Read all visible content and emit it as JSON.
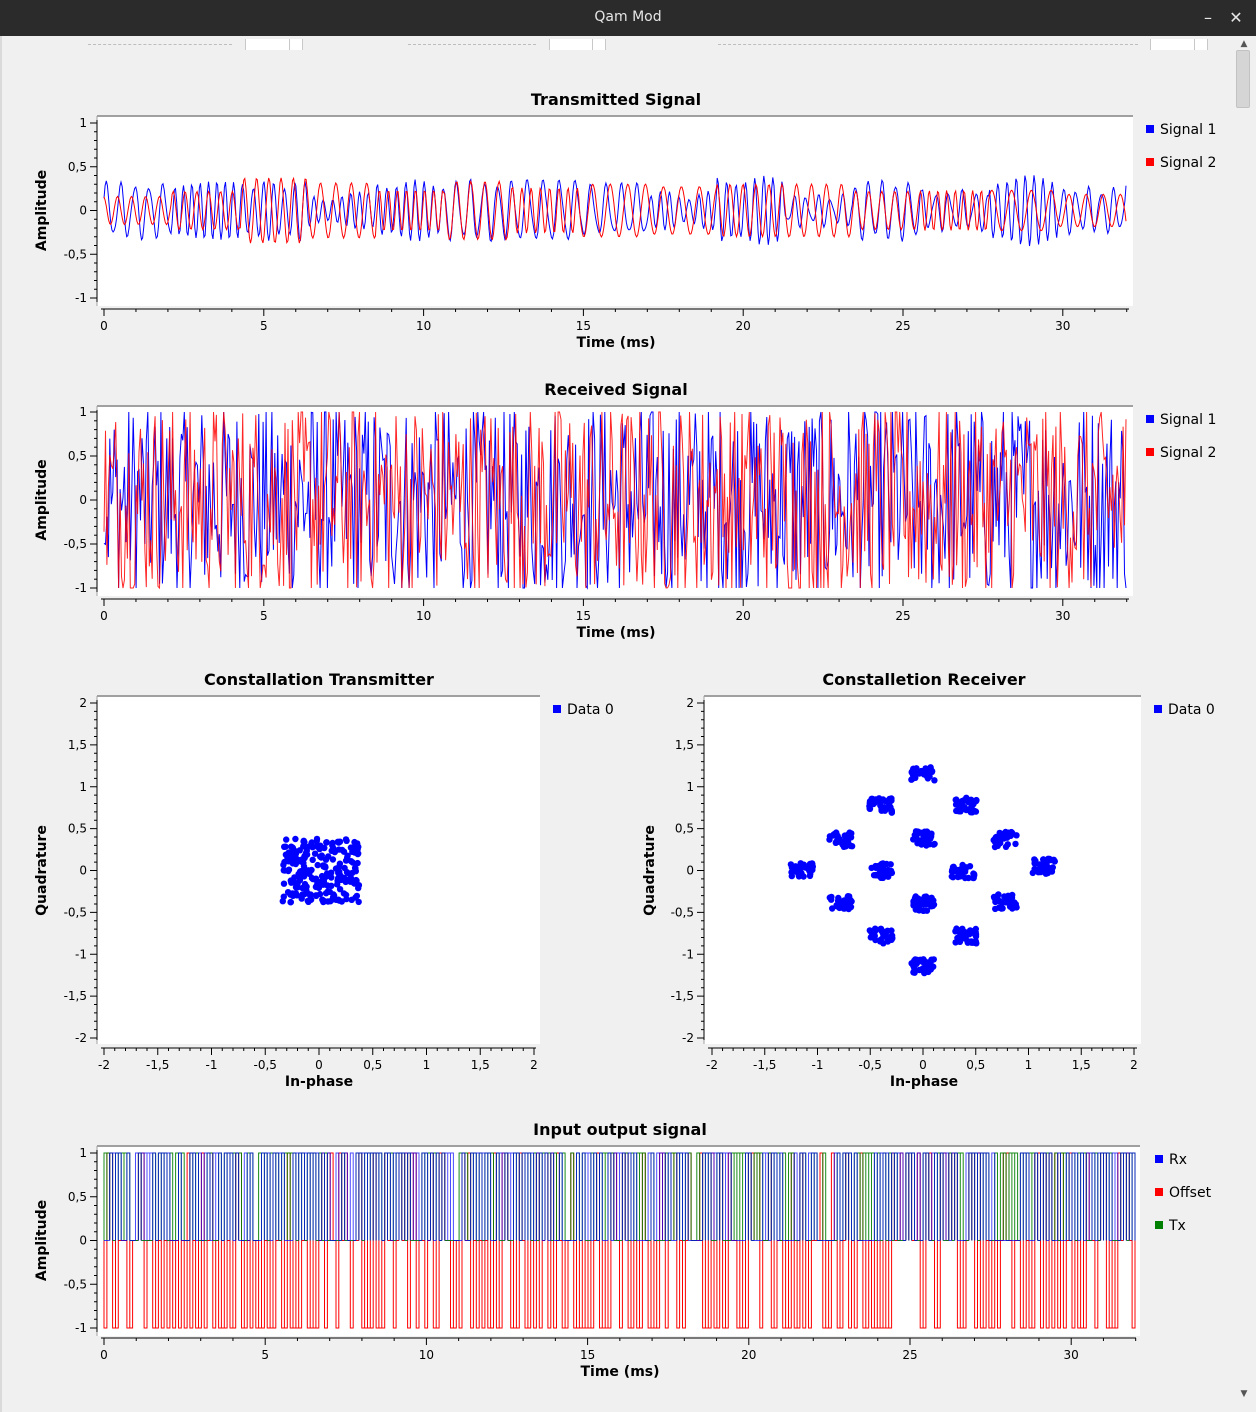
{
  "window": {
    "title": "Qam Mod",
    "minimize_glyph": "–",
    "close_glyph": "✕"
  },
  "scrollbar": {
    "up_glyph": "▲",
    "down_glyph": "▼",
    "position_fraction": 0.0
  },
  "colors": {
    "signal1": "#0000ff",
    "signal2": "#ff0000",
    "tx": "#008000",
    "background": "#f0f0f0",
    "plot_bg": "#ffffff"
  },
  "plots": {
    "transmitted": {
      "title": "Transmitted Signal",
      "xlabel": "Time (ms)",
      "ylabel": "Amplitude",
      "xticks": [
        "0",
        "5",
        "10",
        "15",
        "20",
        "25",
        "30"
      ],
      "yticks": [
        "1",
        "0,5",
        "0",
        "-0,5",
        "-1"
      ],
      "legend": [
        {
          "label": "Signal 1",
          "color": "#0000ff"
        },
        {
          "label": "Signal 2",
          "color": "#ff0000"
        }
      ]
    },
    "received": {
      "title": "Received Signal",
      "xlabel": "Time (ms)",
      "ylabel": "Amplitude",
      "xticks": [
        "0",
        "5",
        "10",
        "15",
        "20",
        "25",
        "30"
      ],
      "yticks": [
        "1",
        "0,5",
        "0",
        "-0,5",
        "-1"
      ],
      "legend": [
        {
          "label": "Signal 1",
          "color": "#0000ff"
        },
        {
          "label": "Signal 2",
          "color": "#ff0000"
        }
      ]
    },
    "const_tx": {
      "title": "Constallation Transmitter",
      "xlabel": "In-phase",
      "ylabel": "Quadrature",
      "xticks": [
        "-2",
        "-1,5",
        "-1",
        "-0,5",
        "0",
        "0,5",
        "1",
        "1,5",
        "2"
      ],
      "yticks": [
        "2",
        "1,5",
        "1",
        "0,5",
        "0",
        "-0,5",
        "-1",
        "-1,5",
        "-2"
      ],
      "legend": [
        {
          "label": "Data 0",
          "color": "#0000ff"
        }
      ]
    },
    "const_rx": {
      "title": "Constalletion Receiver",
      "xlabel": "In-phase",
      "ylabel": "Quadrature",
      "xticks": [
        "-2",
        "-1,5",
        "-1",
        "-0,5",
        "0",
        "0,5",
        "1",
        "1,5",
        "2"
      ],
      "yticks": [
        "2",
        "1,5",
        "1",
        "0,5",
        "0",
        "-0,5",
        "-1",
        "-1,5",
        "-2"
      ],
      "legend": [
        {
          "label": "Data 0",
          "color": "#0000ff"
        }
      ]
    },
    "io": {
      "title": "Input output signal",
      "xlabel": "Time (ms)",
      "ylabel": "Amplitude",
      "xticks": [
        "0",
        "5",
        "10",
        "15",
        "20",
        "25",
        "30"
      ],
      "yticks": [
        "1",
        "0,5",
        "0",
        "-0,5",
        "-1"
      ],
      "legend": [
        {
          "label": "Rx",
          "color": "#0000ff"
        },
        {
          "label": "Offset",
          "color": "#ff0000"
        },
        {
          "label": "Tx",
          "color": "#008000"
        }
      ]
    }
  },
  "chart_data": [
    {
      "type": "line",
      "title": "Transmitted Signal",
      "xlabel": "Time (ms)",
      "ylabel": "Amplitude",
      "xlim": [
        0,
        32
      ],
      "ylim": [
        -1,
        1
      ],
      "grid": false,
      "legend": "right",
      "series": [
        {
          "name": "Signal 1",
          "color": "#0000ff",
          "amplitude_envelope": [
            -0.35,
            0.4
          ]
        },
        {
          "name": "Signal 2",
          "color": "#ff0000",
          "amplitude_envelope": [
            -0.42,
            0.44
          ]
        }
      ]
    },
    {
      "type": "line",
      "title": "Received Signal",
      "xlabel": "Time (ms)",
      "ylabel": "Amplitude",
      "xlim": [
        0,
        32
      ],
      "ylim": [
        -1,
        1
      ],
      "grid": false,
      "legend": "right",
      "series": [
        {
          "name": "Signal 1",
          "color": "#0000ff",
          "amplitude_envelope": [
            -1,
            1
          ]
        },
        {
          "name": "Signal 2",
          "color": "#ff0000",
          "amplitude_envelope": [
            -1,
            1
          ]
        }
      ]
    },
    {
      "type": "scatter",
      "title": "Constallation Transmitter",
      "xlabel": "In-phase",
      "ylabel": "Quadrature",
      "xlim": [
        -2,
        2
      ],
      "ylim": [
        -2,
        2
      ],
      "grid": false,
      "legend": "right",
      "series": [
        {
          "name": "Data 0",
          "color": "#0000ff",
          "cluster_center": [
            0,
            0
          ],
          "cluster_extent": [
            [
              -0.38,
              0.4
            ],
            [
              -0.42,
              0.42
            ]
          ]
        }
      ]
    },
    {
      "type": "scatter",
      "title": "Constalletion Receiver",
      "xlabel": "In-phase",
      "ylabel": "Quadrature",
      "xlim": [
        -2,
        2
      ],
      "ylim": [
        -2,
        2
      ],
      "grid": false,
      "legend": "right",
      "series": [
        {
          "name": "Data 0",
          "color": "#0000ff",
          "cluster_centers": [
            [
              0,
              1.15
            ],
            [
              0.4,
              0.78
            ],
            [
              0.78,
              0.37
            ],
            [
              1.15,
              0.05
            ],
            [
              0.78,
              -0.37
            ],
            [
              0.4,
              -0.78
            ],
            [
              0,
              -1.15
            ],
            [
              -0.4,
              -0.78
            ],
            [
              -0.78,
              -0.38
            ],
            [
              -1.15,
              0
            ],
            [
              -0.78,
              0.37
            ],
            [
              -0.4,
              0.78
            ],
            [
              0,
              0.38
            ],
            [
              0.38,
              0
            ],
            [
              0,
              -0.4
            ],
            [
              -0.4,
              0
            ]
          ]
        }
      ]
    },
    {
      "type": "line",
      "title": "Input output signal",
      "xlabel": "Time (ms)",
      "ylabel": "Amplitude",
      "xlim": [
        0,
        32
      ],
      "ylim": [
        -1,
        1
      ],
      "grid": false,
      "legend": "right",
      "series": [
        {
          "name": "Rx",
          "color": "#0000ff",
          "levels": [
            0,
            1
          ]
        },
        {
          "name": "Offset",
          "color": "#ff0000",
          "levels": [
            -1,
            0,
            1
          ]
        },
        {
          "name": "Tx",
          "color": "#008000",
          "levels": [
            0,
            1
          ]
        }
      ]
    }
  ]
}
